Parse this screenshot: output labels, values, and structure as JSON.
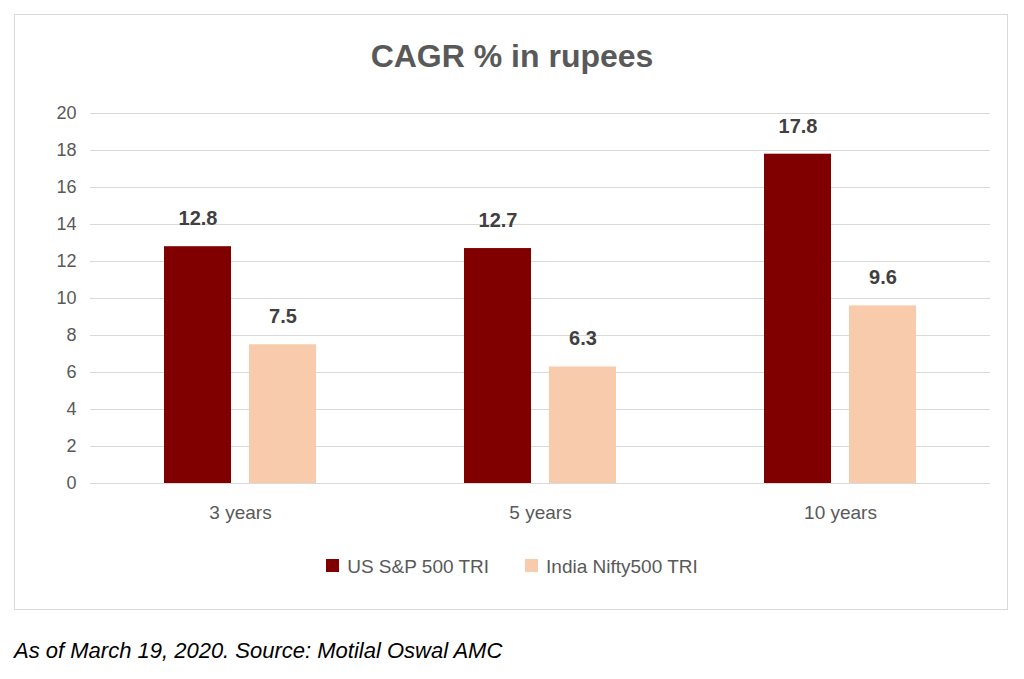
{
  "chart_data": {
    "type": "bar",
    "title": "CAGR % in rupees",
    "categories": [
      "3 years",
      "5 years",
      "10 years"
    ],
    "series": [
      {
        "name": "US S&P 500 TRI",
        "color": "#800000",
        "values": [
          12.8,
          12.7,
          17.8
        ]
      },
      {
        "name": "India Nifty500 TRI",
        "color": "#f8cbad",
        "values": [
          7.5,
          6.3,
          9.6
        ]
      }
    ],
    "ylim": [
      0,
      20
    ],
    "yticks": [
      0,
      2,
      4,
      6,
      8,
      10,
      12,
      14,
      16,
      18,
      20
    ],
    "grid": true,
    "data_labels": true,
    "legend": "bottom",
    "caption": "As of March 19, 2020. Source: Motilal Oswal AMC"
  }
}
